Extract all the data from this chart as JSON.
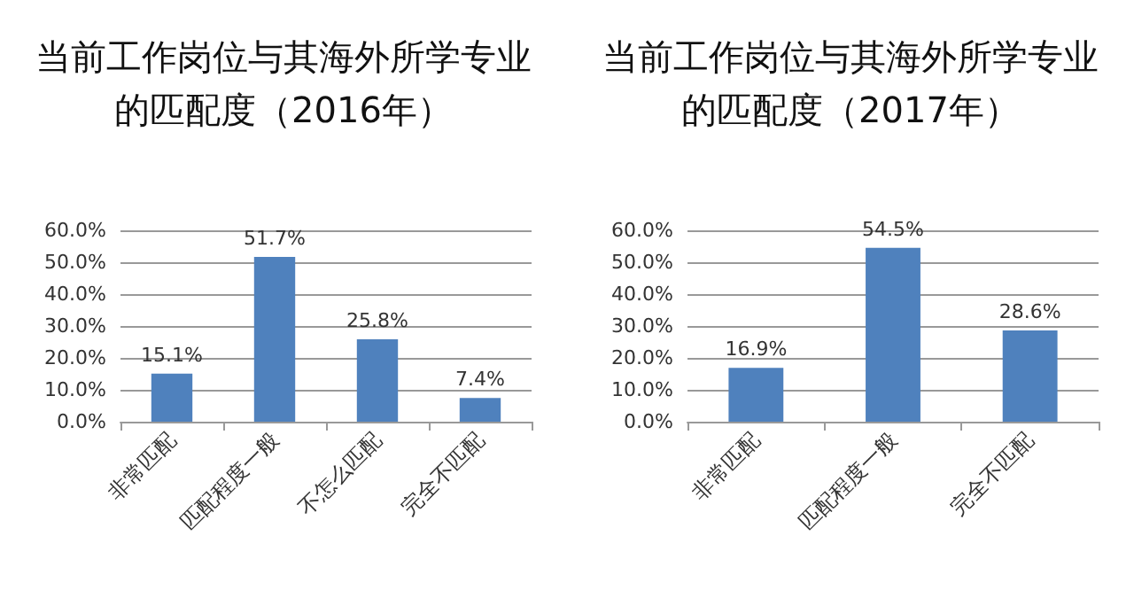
{
  "chart_data": [
    {
      "type": "bar",
      "title": "当前工作岗位与其海外所学专业的匹配度（2016年）",
      "categories": [
        "非常匹配",
        "匹配程度一般",
        "不怎么匹配",
        "完全不匹配"
      ],
      "values": [
        15.1,
        51.7,
        25.8,
        7.4
      ],
      "value_labels": [
        "15.1%",
        "51.7%",
        "25.8%",
        "7.4%"
      ],
      "color": "#4f81bd",
      "ylim": [
        0,
        60
      ],
      "yticks": [
        {
          "value": 0,
          "label": "0.0%"
        },
        {
          "value": 10,
          "label": "10.0%"
        },
        {
          "value": 20,
          "label": "20.0%"
        },
        {
          "value": 30,
          "label": "30.0%"
        },
        {
          "value": 40,
          "label": "40.0%"
        },
        {
          "value": 50,
          "label": "50.0%"
        },
        {
          "value": 60,
          "label": "60.0%"
        }
      ],
      "grid": "y"
    },
    {
      "type": "bar",
      "title": "当前工作岗位与其海外所学专业的匹配度（2017年）",
      "categories": [
        "非常匹配",
        "匹配程度一般",
        "完全不匹配"
      ],
      "values": [
        16.9,
        54.5,
        28.6
      ],
      "value_labels": [
        "16.9%",
        "54.5%",
        "28.6%"
      ],
      "color": "#4f81bd",
      "ylim": [
        0,
        60
      ],
      "yticks": [
        {
          "value": 0,
          "label": "0.0%"
        },
        {
          "value": 10,
          "label": "10.0%"
        },
        {
          "value": 20,
          "label": "20.0%"
        },
        {
          "value": 30,
          "label": "30.0%"
        },
        {
          "value": 40,
          "label": "40.0%"
        },
        {
          "value": 50,
          "label": "50.0%"
        },
        {
          "value": 60,
          "label": "60.0%"
        }
      ],
      "grid": "y"
    }
  ]
}
